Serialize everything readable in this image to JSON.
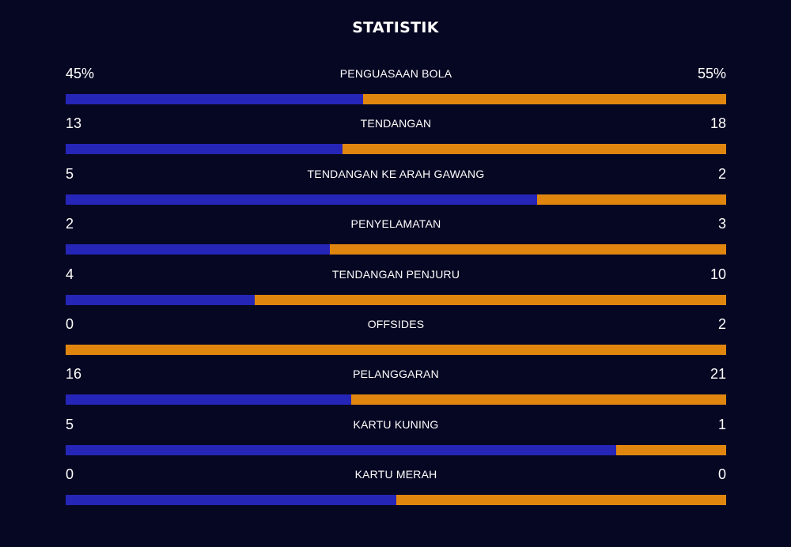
{
  "title": "STATISTIK",
  "colors": {
    "background": "#060722",
    "home": "#2525b8",
    "away": "#e0860f",
    "text": "#ffffff"
  },
  "stats": [
    {
      "label": "PENGUASAAN BOLA",
      "home": "45%",
      "away": "55%",
      "home_share": 0.45
    },
    {
      "label": "TENDANGAN",
      "home": "13",
      "away": "18",
      "home_share": 0.419
    },
    {
      "label": "TENDANGAN KE ARAH GAWANG",
      "home": "5",
      "away": "2",
      "home_share": 0.714
    },
    {
      "label": "PENYELAMATAN",
      "home": "2",
      "away": "3",
      "home_share": 0.4
    },
    {
      "label": "TENDANGAN PENJURU",
      "home": "4",
      "away": "10",
      "home_share": 0.286
    },
    {
      "label": "OFFSIDES",
      "home": "0",
      "away": "2",
      "home_share": 0
    },
    {
      "label": "PELANGGARAN",
      "home": "16",
      "away": "21",
      "home_share": 0.432
    },
    {
      "label": "KARTU KUNING",
      "home": "5",
      "away": "1",
      "home_share": 0.833
    },
    {
      "label": "KARTU MERAH",
      "home": "0",
      "away": "0",
      "home_share": 0.5
    }
  ]
}
